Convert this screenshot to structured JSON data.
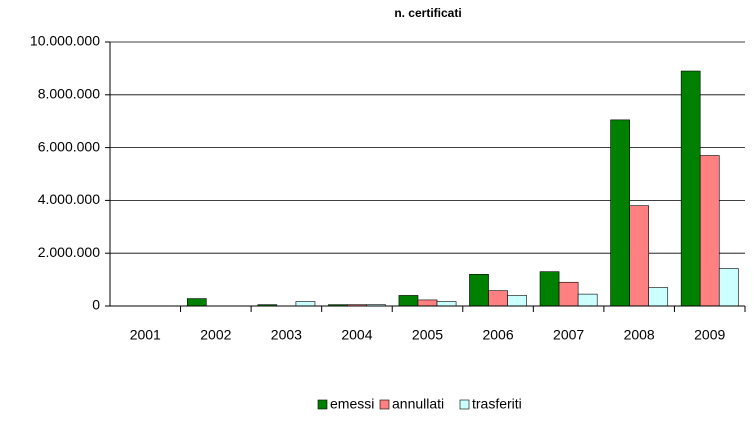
{
  "chart_data": {
    "type": "bar",
    "title": "n. certificati",
    "categories": [
      "2001",
      "2002",
      "2003",
      "2004",
      "2005",
      "2006",
      "2007",
      "2008",
      "2009"
    ],
    "series": [
      {
        "name": "emessi",
        "color": "#008000",
        "values": [
          0,
          280000,
          50000,
          50000,
          400000,
          1200000,
          1300000,
          7050000,
          8900000
        ]
      },
      {
        "name": "annullati",
        "color": "#ff8080",
        "values": [
          0,
          0,
          0,
          50000,
          230000,
          580000,
          900000,
          3800000,
          5700000
        ]
      },
      {
        "name": "trasferiti",
        "color": "#ccffff",
        "values": [
          0,
          0,
          170000,
          50000,
          170000,
          400000,
          450000,
          700000,
          1420000
        ]
      }
    ],
    "ylim": [
      0,
      10000000
    ],
    "yticks": [
      0,
      {
        "value": 2000000,
        "label": "2.000.000"
      },
      {
        "value": 4000000,
        "label": "4.000.000"
      },
      {
        "value": 6000000,
        "label": "6.000.000"
      },
      {
        "value": 8000000,
        "label": "8.000.000"
      },
      {
        "value": 10000000,
        "label": "10.000.000"
      }
    ],
    "grid": true,
    "legend": "bottom"
  }
}
